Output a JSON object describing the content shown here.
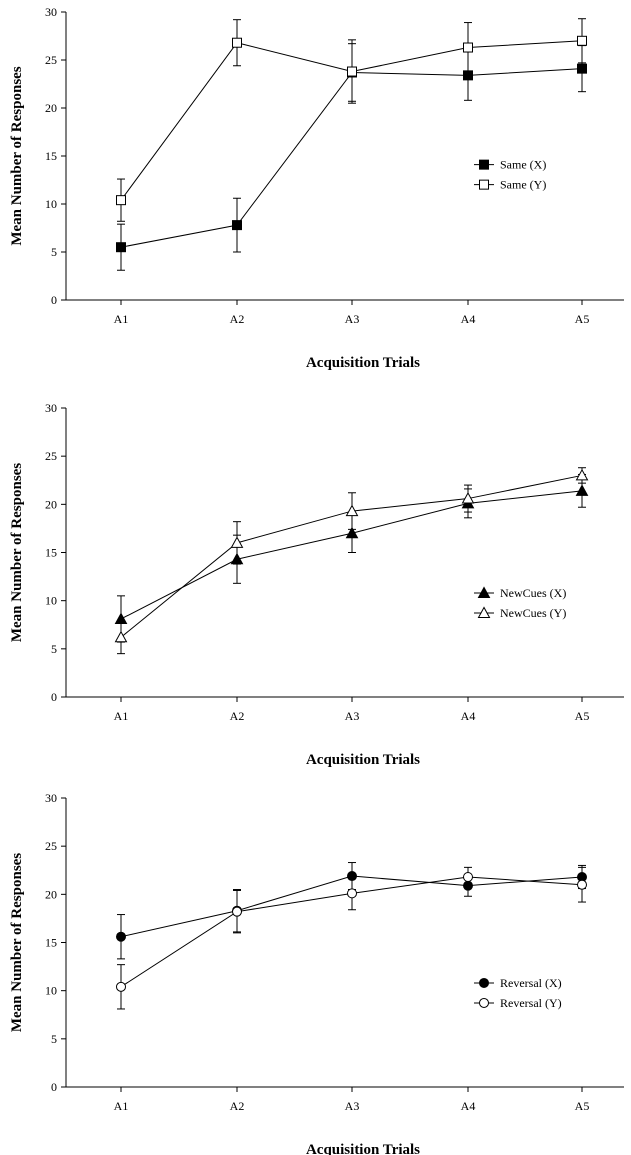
{
  "chart_data": [
    {
      "type": "line",
      "xlabel": "Acquisition Trials",
      "ylabel": "Mean Number of Responses",
      "categories": [
        "A1",
        "A2",
        "A3",
        "A4",
        "A5"
      ],
      "ylim": [
        0,
        30
      ],
      "yticks": [
        0,
        5,
        10,
        15,
        20,
        25,
        30
      ],
      "legend_position": "right-middle",
      "grid": false,
      "series": [
        {
          "name": "Same (X)",
          "marker": "filled-square",
          "color": "#000000",
          "values": [
            5.5,
            7.8,
            23.7,
            23.4,
            24.1
          ],
          "errors": [
            2.4,
            2.8,
            3.0,
            2.6,
            2.4
          ]
        },
        {
          "name": "Same (Y)",
          "marker": "open-square",
          "color": "#000000",
          "values": [
            10.4,
            26.8,
            23.8,
            26.3,
            27.0
          ],
          "errors": [
            2.2,
            2.4,
            3.3,
            2.6,
            2.3
          ]
        }
      ]
    },
    {
      "type": "line",
      "xlabel": "Acquisition Trials",
      "ylabel": "Mean Number of Responses",
      "categories": [
        "A1",
        "A2",
        "A3",
        "A4",
        "A5"
      ],
      "ylim": [
        0,
        30
      ],
      "yticks": [
        0,
        5,
        10,
        15,
        20,
        25,
        30
      ],
      "legend_position": "right-middle",
      "grid": false,
      "series": [
        {
          "name": "NewCues (X)",
          "marker": "filled-triangle",
          "color": "#000000",
          "values": [
            8.1,
            14.3,
            17.0,
            20.1,
            21.4
          ],
          "errors": [
            2.4,
            2.5,
            2.0,
            1.5,
            1.7
          ]
        },
        {
          "name": "NewCues (Y)",
          "marker": "open-triangle",
          "color": "#000000",
          "values": [
            6.2,
            16.0,
            19.3,
            20.6,
            23.0
          ],
          "errors": [
            1.7,
            2.2,
            1.9,
            1.4,
            0.8
          ]
        }
      ]
    },
    {
      "type": "line",
      "xlabel": "Acquisition Trials",
      "ylabel": "Mean Number of Responses",
      "categories": [
        "A1",
        "A2",
        "A3",
        "A4",
        "A5"
      ],
      "ylim": [
        0,
        30
      ],
      "yticks": [
        0,
        5,
        10,
        15,
        20,
        25,
        30
      ],
      "legend_position": "right-middle",
      "grid": false,
      "series": [
        {
          "name": "Reversal (X)",
          "marker": "filled-circle",
          "color": "#000000",
          "values": [
            15.6,
            18.3,
            21.9,
            20.9,
            21.8
          ],
          "errors": [
            2.3,
            2.2,
            1.4,
            1.1,
            1.2
          ]
        },
        {
          "name": "Reversal (Y)",
          "marker": "open-circle",
          "color": "#000000",
          "values": [
            10.4,
            18.2,
            20.1,
            21.8,
            21.0
          ],
          "errors": [
            2.3,
            2.2,
            1.7,
            1.0,
            1.8
          ]
        }
      ]
    }
  ]
}
